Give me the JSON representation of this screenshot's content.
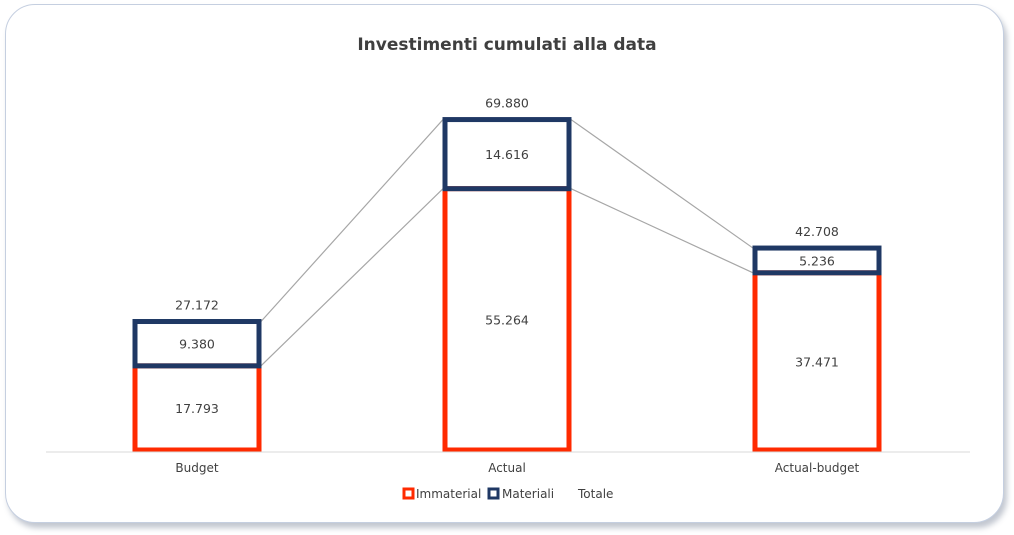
{
  "chart_data": {
    "type": "bar",
    "stacked": true,
    "title": "Investimenti cumulati alla data",
    "categories": [
      "Budget",
      "Actual",
      "Actual-budget"
    ],
    "series": [
      {
        "name": "Immaterial",
        "values": [
          17793,
          55264,
          37471
        ],
        "labels": [
          "17.793",
          "55.264",
          "37.471"
        ],
        "color": "#ff2a00"
      },
      {
        "name": "Materiali",
        "values": [
          9380,
          14616,
          5236
        ],
        "labels": [
          "9.380",
          "14.616",
          "5.236"
        ],
        "color": "#1f3864"
      }
    ],
    "totals": {
      "name": "Totale",
      "values": [
        27172,
        69880,
        42708
      ],
      "labels": [
        "27.172",
        "69.880",
        "42.708"
      ]
    },
    "ylim": [
      0,
      70000
    ],
    "grid": false,
    "legend": "bottom",
    "connector_color": "#a6a6a6"
  }
}
